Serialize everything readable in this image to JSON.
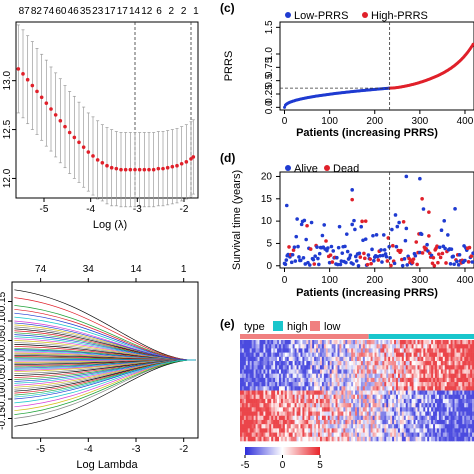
{
  "panels": {
    "c": {
      "label": "(c)"
    },
    "d": {
      "label": "(d)"
    },
    "e": {
      "label": "(e)"
    }
  },
  "chart_data": [
    {
      "id": "a",
      "type": "line",
      "xlabel": "Log (λ)",
      "ylabel": "",
      "xlim": [
        -5.6,
        -1.7
      ],
      "ylim": [
        11.8,
        13.6
      ],
      "x_ticks": [
        -5,
        -4,
        -3,
        -2
      ],
      "y_ticks": [
        12.0,
        12.5,
        13.0
      ],
      "top_ticks": [
        "87",
        "82",
        "74",
        "60",
        "46",
        "35",
        "23",
        "17",
        "17",
        "14",
        "12",
        "6",
        "2",
        "2",
        "1"
      ],
      "vlines": [
        -3.05,
        -1.85
      ],
      "x": [
        -5.55,
        -5.45,
        -5.35,
        -5.25,
        -5.15,
        -5.05,
        -4.95,
        -4.85,
        -4.75,
        -4.65,
        -4.55,
        -4.45,
        -4.35,
        -4.25,
        -4.15,
        -4.05,
        -3.95,
        -3.85,
        -3.75,
        -3.65,
        -3.55,
        -3.45,
        -3.35,
        -3.25,
        -3.15,
        -3.05,
        -2.95,
        -2.85,
        -2.75,
        -2.65,
        -2.55,
        -2.45,
        -2.35,
        -2.25,
        -2.15,
        -2.05,
        -1.95,
        -1.85,
        -1.8
      ],
      "y": [
        13.12,
        13.07,
        13.01,
        12.95,
        12.89,
        12.83,
        12.77,
        12.71,
        12.65,
        12.59,
        12.53,
        12.47,
        12.42,
        12.37,
        12.32,
        12.27,
        12.23,
        12.19,
        12.16,
        12.13,
        12.11,
        12.1,
        12.09,
        12.09,
        12.09,
        12.09,
        12.09,
        12.09,
        12.09,
        12.09,
        12.1,
        12.1,
        12.11,
        12.12,
        12.13,
        12.15,
        12.17,
        12.2,
        12.22
      ],
      "err": [
        0.45,
        0.45,
        0.45,
        0.45,
        0.44,
        0.44,
        0.44,
        0.43,
        0.43,
        0.43,
        0.42,
        0.42,
        0.42,
        0.41,
        0.41,
        0.4,
        0.4,
        0.4,
        0.39,
        0.39,
        0.39,
        0.38,
        0.38,
        0.38,
        0.38,
        0.38,
        0.38,
        0.38,
        0.38,
        0.38,
        0.38,
        0.38,
        0.38,
        0.38,
        0.38,
        0.38,
        0.38,
        0.38,
        0.38
      ]
    },
    {
      "id": "b",
      "type": "line",
      "xlabel": "Log Lambda",
      "ylabel": "",
      "xlim": [
        -5.6,
        -1.7
      ],
      "ylim": [
        -0.2,
        0.2
      ],
      "x_ticks": [
        -5,
        -4,
        -3,
        -2
      ],
      "y_ticks": [
        -0.15,
        -0.1,
        -0.05,
        0.0,
        0.05,
        0.1,
        0.15
      ],
      "top_ticks": [
        {
          "x": -5.0,
          "label": "74"
        },
        {
          "x": -4.0,
          "label": "34"
        },
        {
          "x": -3.0,
          "label": "14"
        },
        {
          "x": -2.0,
          "label": "1"
        }
      ],
      "converge_x": -1.9,
      "series_start_values": [
        0.18,
        0.16,
        0.14,
        0.12,
        0.11,
        0.1,
        0.09,
        0.085,
        0.08,
        0.075,
        0.07,
        0.065,
        0.06,
        0.055,
        0.05,
        0.045,
        0.04,
        0.035,
        0.03,
        0.027,
        0.024,
        0.021,
        0.018,
        0.015,
        0.012,
        0.009,
        0.006,
        0.003,
        0.0,
        -0.003,
        -0.006,
        -0.009,
        -0.012,
        -0.015,
        -0.018,
        -0.021,
        -0.024,
        -0.027,
        -0.03,
        -0.035,
        -0.04,
        -0.045,
        -0.05,
        -0.055,
        -0.06,
        -0.065,
        -0.07,
        -0.075,
        -0.08,
        -0.085,
        -0.09,
        -0.1,
        -0.11,
        -0.12,
        -0.13,
        -0.15,
        -0.17,
        0.13,
        -0.14,
        0.095,
        -0.095
      ]
    },
    {
      "id": "c",
      "type": "scatter",
      "xlabel": "Patients (increasing PRRS)",
      "ylabel": "PRRS",
      "xlim": [
        -10,
        420
      ],
      "ylim": [
        -0.05,
        1.6
      ],
      "x_ticks": [
        0,
        100,
        200,
        300,
        400
      ],
      "y_ticks": [
        0.0,
        0.25,
        0.5,
        0.75,
        1.0,
        1.5
      ],
      "y_tick_labels": [
        "0.0",
        "0.25",
        "0.5",
        "0.75",
        "1.0",
        "1.5"
      ],
      "n": 420,
      "cutoff_index": 233,
      "cutoff_value": 0.36,
      "legend": [
        {
          "name": "Low-PRRS",
          "color": "#1f3bd1"
        },
        {
          "name": "High-PRRS",
          "color": "#e0202a"
        }
      ]
    },
    {
      "id": "d",
      "type": "scatter",
      "xlabel": "Patients (increasing PRRS)",
      "ylabel": "Survival time (years)",
      "xlim": [
        -10,
        420
      ],
      "ylim": [
        -0.5,
        21
      ],
      "x_ticks": [
        0,
        100,
        200,
        300,
        400
      ],
      "y_ticks": [
        0,
        5,
        10,
        15,
        20
      ],
      "cutoff_index": 233,
      "legend": [
        {
          "name": "Alive",
          "color": "#1f3bd1"
        },
        {
          "name": "Dead",
          "color": "#e0202a"
        }
      ],
      "highlights": [
        {
          "x": 270,
          "y": 20,
          "status": "alive"
        },
        {
          "x": 300,
          "y": 19.5,
          "status": "alive"
        },
        {
          "x": 150,
          "y": 17,
          "status": "alive"
        },
        {
          "x": 5,
          "y": 13.5,
          "status": "alive"
        },
        {
          "x": 150,
          "y": 14.8,
          "status": "dead"
        },
        {
          "x": 180,
          "y": 10,
          "status": "dead"
        },
        {
          "x": 305,
          "y": 15,
          "status": "dead"
        },
        {
          "x": 320,
          "y": 12,
          "status": "dead"
        }
      ]
    },
    {
      "id": "e",
      "type": "heatmap",
      "annotation_title": "type",
      "annotation": [
        {
          "name": "high",
          "color": "#19c6cc"
        },
        {
          "name": "low",
          "color": "#f08080"
        }
      ],
      "low_fraction": 0.55,
      "rows": 24,
      "cols": 120,
      "colorbar": {
        "ticks": [
          -5,
          0,
          5
        ],
        "colors": [
          "#2b2bd9",
          "#ffffff",
          "#e8242a"
        ]
      }
    }
  ]
}
